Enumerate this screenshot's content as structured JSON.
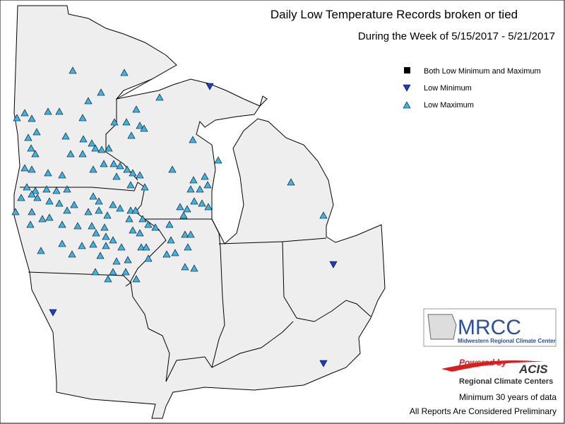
{
  "header": {
    "title": "Daily Low Temperature Records broken or tied",
    "subtitle": "During the Week of 5/15/2017 - 5/21/2017"
  },
  "legend": {
    "items": [
      "Both Low Minimum and Maximum",
      "Low Minimum",
      "Low Maximum"
    ]
  },
  "logos": {
    "mrcc": "MRCC",
    "mrcc_name": "Midwestern Regional Climate Center",
    "powered_by": "Powered by",
    "acis": "ACIS",
    "rcc": "Regional Climate Centers"
  },
  "notes": [
    "Minimum 30 years of data",
    "All Reports Are Considered Preliminary"
  ]
}
